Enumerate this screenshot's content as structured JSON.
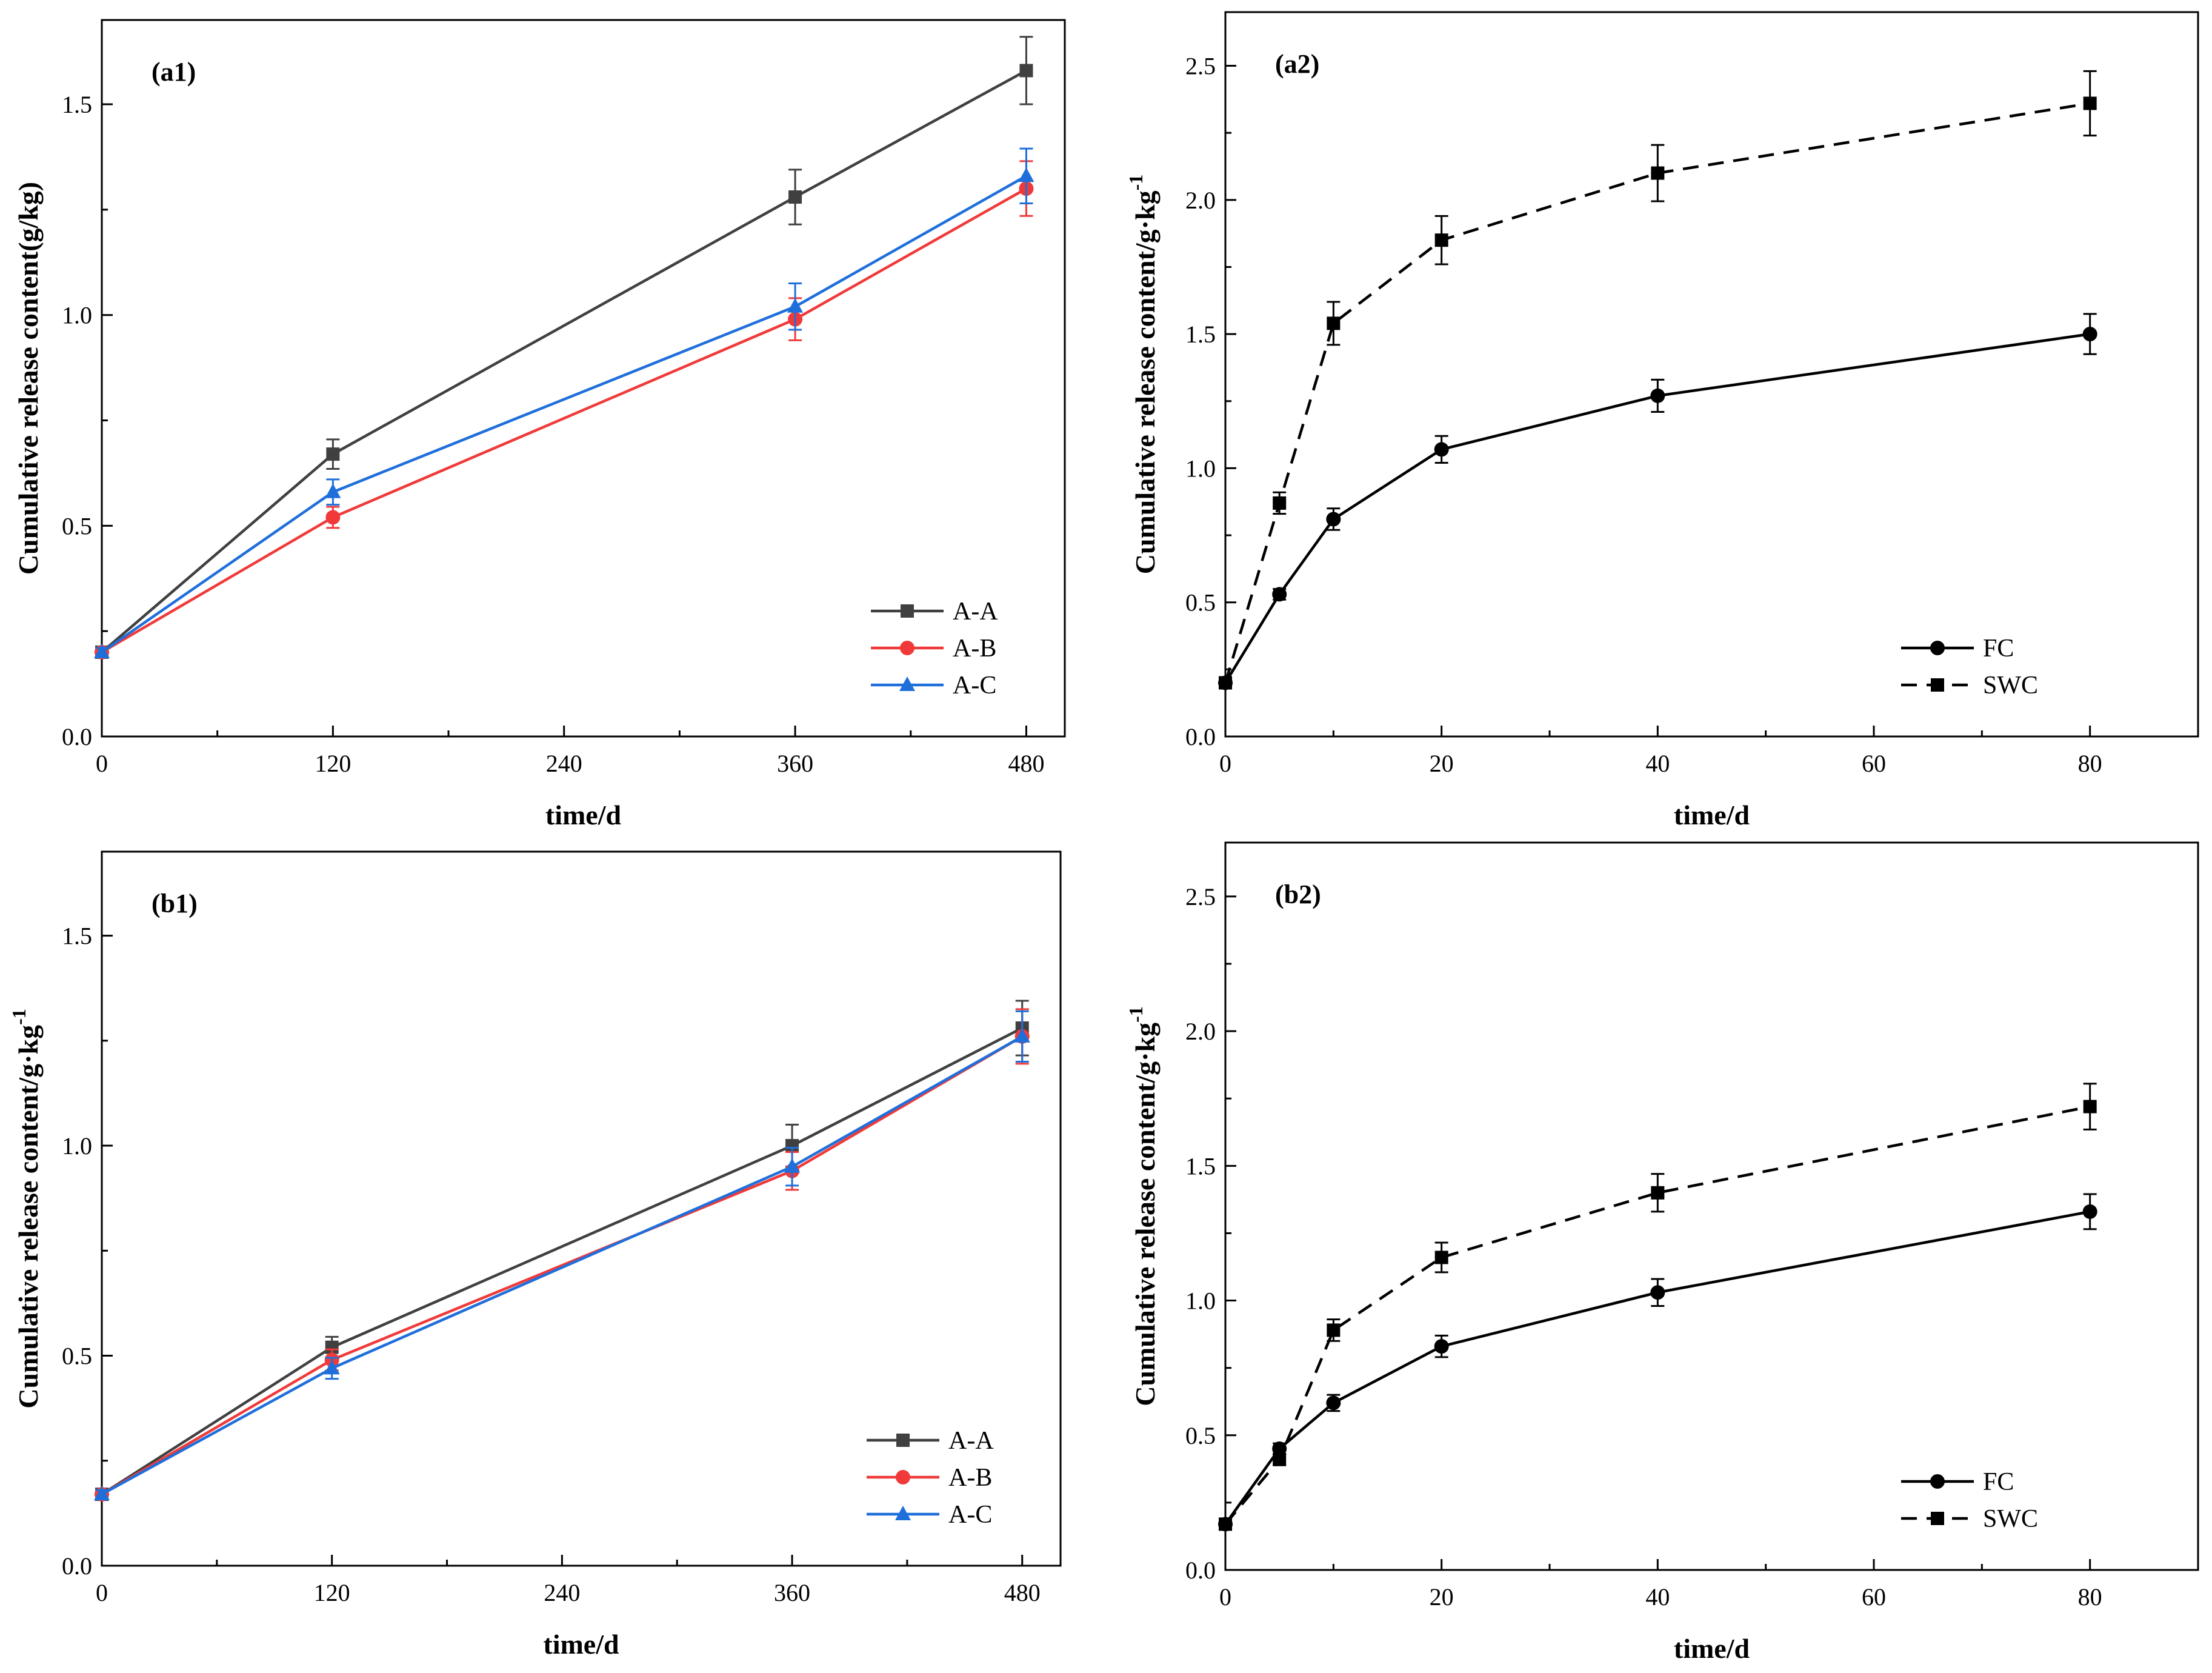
{
  "chart_data": [
    {
      "id": "a1",
      "type": "line",
      "panel_label": "(a1)",
      "xlabel": "time/d",
      "ylabel": "Cumulative release content(g/kg)",
      "xlim": [
        0,
        500
      ],
      "ylim": [
        0,
        1.7
      ],
      "xticks": [
        0,
        120,
        240,
        360,
        480
      ],
      "xtick_labels": [
        "0",
        "120",
        "240",
        "360",
        "480"
      ],
      "yticks": [
        0,
        0.5,
        1.0,
        1.5
      ],
      "ytick_labels": [
        "0.0",
        "0.5",
        "1.0",
        "1.5"
      ],
      "x": [
        0,
        120,
        360,
        480
      ],
      "legend_position": "bottom-right",
      "series": [
        {
          "name": "A-A",
          "color": "#404040",
          "marker": "square",
          "dash": "solid",
          "values": [
            0.2,
            0.67,
            1.28,
            1.58
          ],
          "errors": [
            0.01,
            0.035,
            0.065,
            0.08
          ]
        },
        {
          "name": "A-B",
          "color": "#f03a3a",
          "marker": "circle",
          "dash": "solid",
          "values": [
            0.2,
            0.52,
            0.99,
            1.3
          ],
          "errors": [
            0.01,
            0.025,
            0.05,
            0.065
          ]
        },
        {
          "name": "A-C",
          "color": "#1f6fdb",
          "marker": "triangle",
          "dash": "solid",
          "values": [
            0.2,
            0.58,
            1.02,
            1.33
          ],
          "errors": [
            0.01,
            0.03,
            0.055,
            0.065
          ]
        }
      ]
    },
    {
      "id": "a2",
      "type": "line",
      "panel_label": "(a2)",
      "xlabel": "time/d",
      "ylabel": "Cumulative release content/g·kg-1",
      "ylabel_main": "Cumulative release content/g·kg",
      "ylabel_sup": "-1",
      "xlim": [
        0,
        90
      ],
      "ylim": [
        0,
        2.7
      ],
      "xticks": [
        0,
        20,
        40,
        60,
        80
      ],
      "xtick_labels": [
        "0",
        "20",
        "40",
        "60",
        "80"
      ],
      "yticks": [
        0,
        0.5,
        1.0,
        1.5,
        2.0,
        2.5
      ],
      "ytick_labels": [
        "0.0",
        "0.5",
        "1.0",
        "1.5",
        "2.0",
        "2.5"
      ],
      "x": [
        0,
        5,
        10,
        20,
        40,
        80
      ],
      "legend_position": "bottom-right",
      "series": [
        {
          "name": "FC",
          "color": "#000000",
          "marker": "circle",
          "dash": "solid",
          "values": [
            0.2,
            0.53,
            0.81,
            1.07,
            1.27,
            1.5
          ],
          "errors": [
            0.01,
            0.02,
            0.04,
            0.05,
            0.06,
            0.075
          ]
        },
        {
          "name": "SWC",
          "color": "#000000",
          "marker": "square",
          "dash": "dashed",
          "values": [
            0.2,
            0.87,
            1.54,
            1.85,
            2.1,
            2.36
          ],
          "errors": [
            0.01,
            0.04,
            0.08,
            0.09,
            0.105,
            0.12
          ]
        }
      ]
    },
    {
      "id": "b1",
      "type": "line",
      "panel_label": "(b1)",
      "xlabel": "time/d",
      "ylabel": "Cumulative release content/g·kg-1",
      "ylabel_main": "Cumulative release content/g·kg",
      "ylabel_sup": "-1",
      "xlim": [
        0,
        500
      ],
      "ylim": [
        0,
        1.7
      ],
      "xticks": [
        0,
        120,
        240,
        360,
        480
      ],
      "xtick_labels": [
        "0",
        "120",
        "240",
        "360",
        "480"
      ],
      "yticks": [
        0,
        0.5,
        1.0,
        1.5
      ],
      "ytick_labels": [
        "0.0",
        "0.5",
        "1.0",
        "1.5"
      ],
      "x": [
        0,
        120,
        360,
        480
      ],
      "legend_position": "bottom-right",
      "series": [
        {
          "name": "A-A",
          "color": "#404040",
          "marker": "square",
          "dash": "solid",
          "values": [
            0.17,
            0.52,
            1.0,
            1.28
          ],
          "errors": [
            0.01,
            0.025,
            0.05,
            0.065
          ]
        },
        {
          "name": "A-B",
          "color": "#f03a3a",
          "marker": "circle",
          "dash": "solid",
          "values": [
            0.17,
            0.49,
            0.94,
            1.26
          ],
          "errors": [
            0.01,
            0.025,
            0.045,
            0.065
          ]
        },
        {
          "name": "A-C",
          "color": "#1f6fdb",
          "marker": "triangle",
          "dash": "solid",
          "values": [
            0.17,
            0.47,
            0.95,
            1.26
          ],
          "errors": [
            0.01,
            0.025,
            0.045,
            0.06
          ]
        }
      ]
    },
    {
      "id": "b2",
      "type": "line",
      "panel_label": "(b2)",
      "xlabel": "time/d",
      "ylabel": "Cumulative release content/g·kg-1",
      "ylabel_main": "Cumulative release content/g·kg",
      "ylabel_sup": "-1",
      "xlim": [
        0,
        90
      ],
      "ylim": [
        0,
        2.7
      ],
      "xticks": [
        0,
        20,
        40,
        60,
        80
      ],
      "xtick_labels": [
        "0",
        "20",
        "40",
        "60",
        "80"
      ],
      "yticks": [
        0,
        0.5,
        1.0,
        1.5,
        2.0,
        2.5
      ],
      "ytick_labels": [
        "0.0",
        "0.5",
        "1.0",
        "1.5",
        "2.0",
        "2.5"
      ],
      "x": [
        0,
        5,
        10,
        20,
        40,
        80
      ],
      "legend_position": "bottom-right",
      "series": [
        {
          "name": "FC",
          "color": "#000000",
          "marker": "circle",
          "dash": "solid",
          "values": [
            0.17,
            0.45,
            0.62,
            0.83,
            1.03,
            1.33
          ],
          "errors": [
            0.01,
            0.02,
            0.03,
            0.04,
            0.05,
            0.065
          ]
        },
        {
          "name": "SWC",
          "color": "#000000",
          "marker": "square",
          "dash": "dashed",
          "values": [
            0.17,
            0.41,
            0.89,
            1.16,
            1.4,
            1.72
          ],
          "errors": [
            0.01,
            0.02,
            0.04,
            0.055,
            0.07,
            0.085
          ]
        }
      ]
    }
  ]
}
